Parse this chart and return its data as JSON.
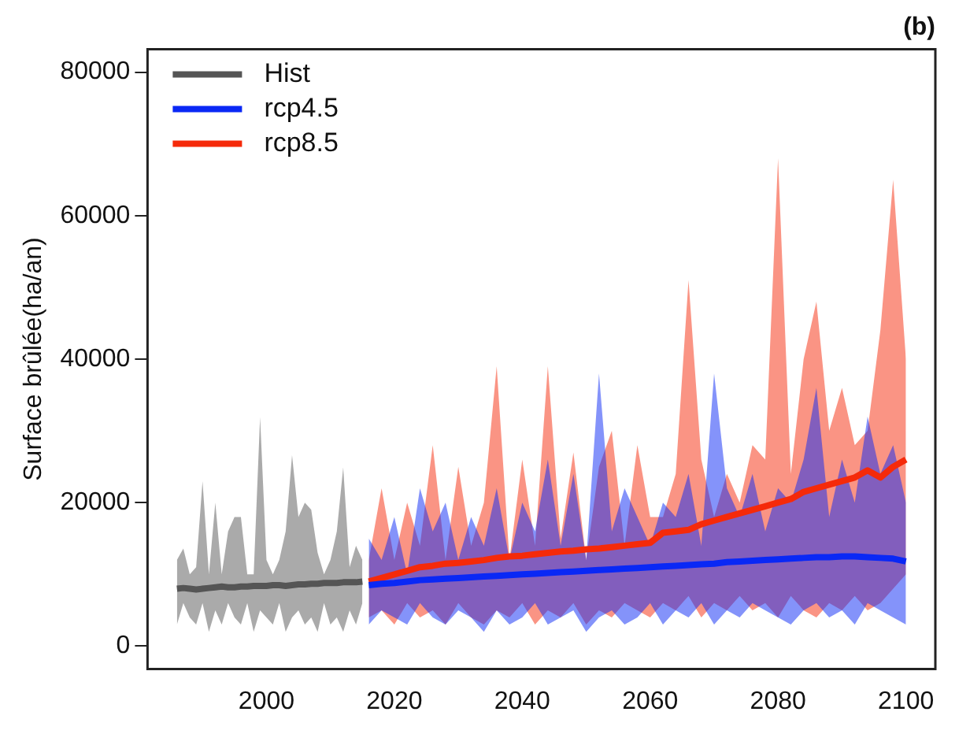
{
  "chart_data": {
    "type": "line",
    "title": "(b)",
    "ylabel": "Surface brûlée(ha/an)",
    "xlim": [
      1981.4,
      2104.6
    ],
    "xticks": [
      2000,
      2020,
      2040,
      2060,
      2080,
      2100
    ],
    "ylim": [
      -3200,
      83200
    ],
    "yticks": [
      0,
      20000,
      40000,
      60000,
      80000
    ],
    "grid": false,
    "legend": "top left",
    "marker": "none",
    "line_style": "solid",
    "series": [
      {
        "name": "Hist",
        "color": "#555555",
        "x": [
          1986,
          1987,
          1988,
          1989,
          1990,
          1991,
          1992,
          1993,
          1994,
          1995,
          1996,
          1997,
          1998,
          1999,
          2000,
          2001,
          2002,
          2003,
          2004,
          2005,
          2006,
          2007,
          2008,
          2009,
          2010,
          2011,
          2012,
          2013,
          2014,
          2015
        ],
        "values": [
          8000,
          8100,
          8000,
          7900,
          8000,
          8100,
          8200,
          8300,
          8200,
          8200,
          8300,
          8300,
          8400,
          8400,
          8400,
          8500,
          8500,
          8400,
          8500,
          8600,
          8600,
          8700,
          8700,
          8800,
          8800,
          8800,
          8900,
          8900,
          8900,
          9000
        ],
        "lower": [
          3000,
          6000,
          4000,
          3000,
          6000,
          2000,
          5000,
          3000,
          6000,
          4000,
          3000,
          6000,
          2000,
          5000,
          4000,
          3000,
          6000,
          2000,
          4000,
          5000,
          3000,
          4000,
          2000,
          6000,
          3000,
          4000,
          2000,
          5000,
          3000,
          6000
        ],
        "upper": [
          12000,
          13600,
          10000,
          11000,
          23000,
          10000,
          20000,
          10000,
          16000,
          18000,
          18000,
          10000,
          10000,
          31900,
          12000,
          10000,
          12000,
          16000,
          26600,
          18000,
          20000,
          19000,
          13000,
          10000,
          12000,
          16000,
          24900,
          11000,
          14000,
          12000
        ]
      },
      {
        "name": "rcp4.5",
        "color": "#0a28f5",
        "x": [
          2016,
          2018,
          2020,
          2022,
          2024,
          2026,
          2028,
          2030,
          2032,
          2034,
          2036,
          2038,
          2040,
          2042,
          2044,
          2046,
          2048,
          2050,
          2052,
          2054,
          2056,
          2058,
          2060,
          2062,
          2064,
          2066,
          2068,
          2070,
          2072,
          2074,
          2076,
          2078,
          2080,
          2082,
          2084,
          2086,
          2088,
          2090,
          2092,
          2094,
          2096,
          2098,
          2100
        ],
        "values": [
          8500,
          8700,
          8800,
          9000,
          9200,
          9300,
          9400,
          9500,
          9600,
          9700,
          9800,
          9900,
          10000,
          10100,
          10200,
          10300,
          10400,
          10500,
          10600,
          10700,
          10800,
          10900,
          11000,
          11100,
          11200,
          11300,
          11400,
          11500,
          11700,
          11800,
          11900,
          12000,
          12100,
          12200,
          12300,
          12400,
          12400,
          12500,
          12500,
          12400,
          12300,
          12200,
          11800
        ],
        "lower": [
          3000,
          5000,
          4000,
          3000,
          6000,
          4000,
          3000,
          5000,
          4000,
          2000,
          5000,
          3000,
          4000,
          6000,
          3000,
          4000,
          5000,
          2000,
          4000,
          5000,
          3000,
          4000,
          6000,
          3000,
          5000,
          4000,
          6000,
          3000,
          5000,
          4000,
          6000,
          5000,
          4000,
          3000,
          5000,
          6000,
          4000,
          5000,
          3000,
          6000,
          5000,
          4000,
          3000
        ],
        "upper": [
          15000,
          12000,
          18000,
          10000,
          22000,
          16000,
          20000,
          12000,
          18000,
          14000,
          22000,
          12000,
          20000,
          16000,
          26000,
          14000,
          24000,
          12000,
          38000,
          16000,
          22000,
          18000,
          14000,
          20000,
          18000,
          24000,
          14000,
          38000,
          22000,
          18000,
          24000,
          16000,
          22000,
          20000,
          26000,
          36000,
          18000,
          26000,
          20000,
          32000,
          24000,
          28000,
          20000
        ]
      },
      {
        "name": "rcp8.5",
        "color": "#f52a0a",
        "x": [
          2016,
          2018,
          2020,
          2022,
          2024,
          2026,
          2028,
          2030,
          2032,
          2034,
          2036,
          2038,
          2040,
          2042,
          2044,
          2046,
          2048,
          2050,
          2052,
          2054,
          2056,
          2058,
          2060,
          2062,
          2064,
          2066,
          2068,
          2070,
          2072,
          2074,
          2076,
          2078,
          2080,
          2082,
          2084,
          2086,
          2088,
          2090,
          2092,
          2094,
          2096,
          2098,
          2100
        ],
        "values": [
          9000,
          9500,
          10000,
          10500,
          11000,
          11200,
          11500,
          11600,
          11800,
          12000,
          12300,
          12500,
          12600,
          12800,
          13000,
          13200,
          13300,
          13500,
          13600,
          13800,
          14000,
          14200,
          14400,
          15800,
          16000,
          16200,
          17000,
          17500,
          18000,
          18500,
          19000,
          19500,
          20000,
          20500,
          21500,
          22000,
          22500,
          23000,
          23500,
          24500,
          23500,
          25000,
          26000
        ],
        "lower": [
          4000,
          5000,
          3000,
          6000,
          4000,
          5000,
          3000,
          6000,
          4000,
          3000,
          5000,
          4000,
          6000,
          3000,
          5000,
          4000,
          6000,
          3000,
          5000,
          4000,
          6000,
          5000,
          4000,
          6000,
          5000,
          7000,
          4000,
          6000,
          5000,
          7000,
          5000,
          6000,
          4000,
          7000,
          5000,
          4000,
          6000,
          5000,
          7000,
          5000,
          6000,
          8000,
          10000
        ],
        "upper": [
          12000,
          22000,
          12000,
          20000,
          14000,
          28000,
          12000,
          25000,
          14000,
          20000,
          39000,
          12000,
          26000,
          14000,
          39000,
          15000,
          27000,
          12000,
          25000,
          30000,
          14000,
          28000,
          18000,
          18000,
          24000,
          51000,
          26000,
          18000,
          24000,
          20000,
          28000,
          26000,
          68000,
          24000,
          40000,
          48000,
          30000,
          36000,
          28000,
          30000,
          44000,
          65000,
          40000
        ]
      }
    ]
  }
}
